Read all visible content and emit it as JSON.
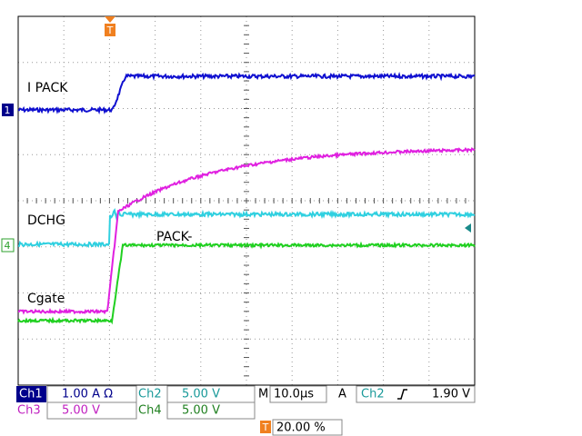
{
  "traces": {
    "ch1_label": "I PACK",
    "ch2_label": "DCHG",
    "ch4_label": "PACK-",
    "ch3_label": "Cgate",
    "ch1_marker": "1",
    "ch4_marker": "4",
    "trigger_marker": "T"
  },
  "status": {
    "row1": [
      "Ch1",
      "1.00 A Ω",
      "Ch2",
      "5.00 V",
      "M",
      "10.0µs",
      "A",
      "Ch2",
      "1.90 V"
    ],
    "row2": [
      "Ch3",
      "5.00 V",
      "Ch4",
      "5.00 V"
    ],
    "row3": [
      "T",
      "20.00 %"
    ]
  }
}
